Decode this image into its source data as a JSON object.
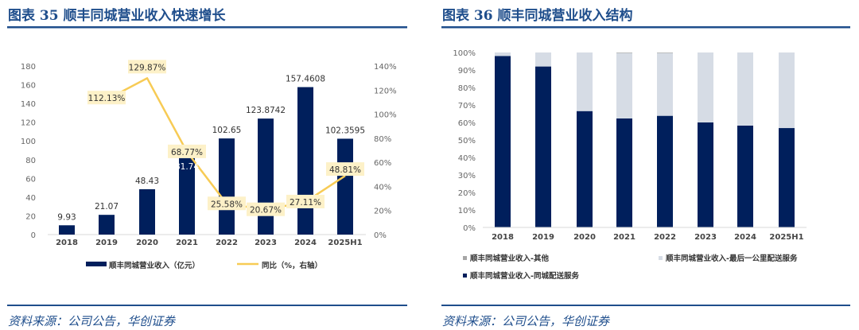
{
  "left": {
    "title": "图表 35 顺丰同城营业收入快速增长",
    "source": "资料来源：公司公告，华创证券"
  },
  "right": {
    "title": "图表 36 顺丰同城营业收入结构",
    "source": "资料来源：公司公告，华创证券"
  },
  "colors": {
    "navy": "#001f5c",
    "gold": "#f7cb55",
    "light": "#d6dce5",
    "other": "#a6a6a6",
    "title": "#1f4e8c",
    "label_bg": "#fdf1c8"
  },
  "chart_data": [
    {
      "type": "bar+line",
      "title": "顺丰同城营业收入快速增长",
      "categories": [
        "2018",
        "2019",
        "2020",
        "2021",
        "2022",
        "2023",
        "2024",
        "2025H1"
      ],
      "series": [
        {
          "name": "顺丰同城营业收入（亿元）",
          "type": "bar",
          "axis": "left",
          "values": [
            9.93,
            21.07,
            48.43,
            81.74,
            102.65,
            123.8742,
            157.4608,
            102.3595
          ],
          "labels": [
            "9.93",
            "21.07",
            "48.43",
            "81.74",
            "102.65",
            "123.8742",
            "157.4608",
            "102.3595"
          ]
        },
        {
          "name": "同比（%，右轴）",
          "type": "line",
          "axis": "right",
          "values": [
            null,
            112.13,
            129.87,
            68.77,
            25.58,
            20.67,
            27.11,
            48.81
          ],
          "labels": [
            "",
            "112.13%",
            "129.87%",
            "68.77%",
            "25.58%",
            "20.67%",
            "27.11%",
            "48.81%"
          ]
        }
      ],
      "ylim": [
        0,
        180
      ],
      "yticks": [
        "0",
        "20",
        "40",
        "60",
        "80",
        "100",
        "120",
        "140",
        "160",
        "180"
      ],
      "y2lim": [
        0,
        140
      ],
      "y2ticks": [
        "0%",
        "20%",
        "40%",
        "60%",
        "80%",
        "100%",
        "120%",
        "140%"
      ],
      "legend": "bottom"
    },
    {
      "type": "stacked_bar_100",
      "title": "顺丰同城营业收入结构",
      "categories": [
        "2018",
        "2019",
        "2020",
        "2021",
        "2022",
        "2023",
        "2024",
        "2025H1"
      ],
      "series": [
        {
          "name": "顺丰同城营业收入-同城配送服务",
          "values": [
            98,
            92,
            66.5,
            62.3,
            63.8,
            60,
            58.2,
            56.8
          ]
        },
        {
          "name": "顺丰同城营业收入-最后一公里配送服务",
          "values": [
            2,
            8,
            33.5,
            37.4,
            35.9,
            40,
            41.8,
            43.2
          ]
        },
        {
          "name": "顺丰同城营业收入-其他",
          "values": [
            0,
            0,
            0,
            0.3,
            0.3,
            0,
            0,
            0
          ]
        }
      ],
      "ylim": [
        0,
        100
      ],
      "yticks": [
        "0%",
        "10%",
        "20%",
        "30%",
        "40%",
        "50%",
        "60%",
        "70%",
        "80%",
        "90%",
        "100%"
      ],
      "legend": "bottom"
    }
  ]
}
